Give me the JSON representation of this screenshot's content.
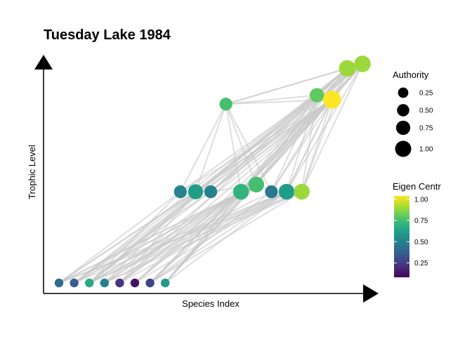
{
  "chart_data": {
    "type": "network",
    "title": "Tuesday Lake 1984",
    "xlabel": "Species Index",
    "ylabel": "Trophic Level",
    "nodes": [
      {
        "id": 0,
        "x": 1,
        "level": 1,
        "eigen": 0.35,
        "authority": 0.02
      },
      {
        "id": 1,
        "x": 2,
        "level": 1,
        "eigen": 0.3,
        "authority": 0.02
      },
      {
        "id": 2,
        "x": 3,
        "level": 1,
        "eigen": 0.6,
        "authority": 0.02
      },
      {
        "id": 3,
        "x": 4,
        "level": 1,
        "eigen": 0.45,
        "authority": 0.02
      },
      {
        "id": 4,
        "x": 5,
        "level": 1,
        "eigen": 0.15,
        "authority": 0.02
      },
      {
        "id": 5,
        "x": 6,
        "level": 1,
        "eigen": 0.05,
        "authority": 0.02
      },
      {
        "id": 6,
        "x": 7,
        "level": 1,
        "eigen": 0.2,
        "authority": 0.02
      },
      {
        "id": 7,
        "x": 8,
        "level": 1,
        "eigen": 0.55,
        "authority": 0.02
      },
      {
        "id": 8,
        "x": 9,
        "level": 2.02,
        "eigen": 0.45,
        "authority": 0.3
      },
      {
        "id": 9,
        "x": 10,
        "level": 2.02,
        "eigen": 0.55,
        "authority": 0.45
      },
      {
        "id": 10,
        "x": 11,
        "level": 2.02,
        "eigen": 0.45,
        "authority": 0.3
      },
      {
        "id": 11,
        "x": 13,
        "level": 2.02,
        "eigen": 0.65,
        "authority": 0.5
      },
      {
        "id": 12,
        "x": 14,
        "level": 2.1,
        "eigen": 0.7,
        "authority": 0.5
      },
      {
        "id": 13,
        "x": 15,
        "level": 2.02,
        "eigen": 0.4,
        "authority": 0.3
      },
      {
        "id": 14,
        "x": 16,
        "level": 2.02,
        "eigen": 0.55,
        "authority": 0.5
      },
      {
        "id": 15,
        "x": 17,
        "level": 2.02,
        "eigen": 0.85,
        "authority": 0.5
      },
      {
        "id": 16,
        "x": 12,
        "level": 3.0,
        "eigen": 0.7,
        "authority": 0.3
      },
      {
        "id": 17,
        "x": 18,
        "level": 3.1,
        "eigen": 0.75,
        "authority": 0.4
      },
      {
        "id": 18,
        "x": 19,
        "level": 3.05,
        "eigen": 1.0,
        "authority": 0.65
      },
      {
        "id": 19,
        "x": 20,
        "level": 3.4,
        "eigen": 0.85,
        "authority": 0.55
      },
      {
        "id": 20,
        "x": 21,
        "level": 3.45,
        "eigen": 0.85,
        "authority": 0.55
      }
    ],
    "edges": [
      [
        0,
        8
      ],
      [
        0,
        9
      ],
      [
        0,
        11
      ],
      [
        0,
        12
      ],
      [
        0,
        14
      ],
      [
        0,
        15
      ],
      [
        0,
        18
      ],
      [
        1,
        9
      ],
      [
        1,
        10
      ],
      [
        1,
        11
      ],
      [
        1,
        12
      ],
      [
        1,
        14
      ],
      [
        1,
        18
      ],
      [
        1,
        19
      ],
      [
        2,
        8
      ],
      [
        2,
        9
      ],
      [
        2,
        11
      ],
      [
        2,
        12
      ],
      [
        2,
        13
      ],
      [
        2,
        14
      ],
      [
        2,
        15
      ],
      [
        2,
        17
      ],
      [
        2,
        18
      ],
      [
        2,
        19
      ],
      [
        2,
        20
      ],
      [
        3,
        9
      ],
      [
        3,
        11
      ],
      [
        3,
        12
      ],
      [
        3,
        14
      ],
      [
        3,
        15
      ],
      [
        3,
        18
      ],
      [
        4,
        9
      ],
      [
        4,
        11
      ],
      [
        4,
        12
      ],
      [
        4,
        14
      ],
      [
        4,
        18
      ],
      [
        4,
        19
      ],
      [
        5,
        11
      ],
      [
        5,
        12
      ],
      [
        5,
        14
      ],
      [
        5,
        18
      ],
      [
        6,
        11
      ],
      [
        6,
        12
      ],
      [
        6,
        13
      ],
      [
        6,
        14
      ],
      [
        6,
        15
      ],
      [
        6,
        18
      ],
      [
        6,
        20
      ],
      [
        7,
        11
      ],
      [
        7,
        12
      ],
      [
        7,
        14
      ],
      [
        7,
        18
      ],
      [
        7,
        19
      ],
      [
        7,
        20
      ],
      [
        8,
        16
      ],
      [
        8,
        18
      ],
      [
        8,
        17
      ],
      [
        9,
        16
      ],
      [
        9,
        17
      ],
      [
        9,
        18
      ],
      [
        9,
        19
      ],
      [
        9,
        20
      ],
      [
        10,
        12
      ],
      [
        10,
        17
      ],
      [
        10,
        18
      ],
      [
        10,
        19
      ],
      [
        10,
        20
      ],
      [
        11,
        16
      ],
      [
        11,
        17
      ],
      [
        11,
        18
      ],
      [
        11,
        19
      ],
      [
        11,
        20
      ],
      [
        12,
        16
      ],
      [
        12,
        17
      ],
      [
        12,
        18
      ],
      [
        12,
        19
      ],
      [
        12,
        20
      ],
      [
        13,
        16
      ],
      [
        13,
        17
      ],
      [
        13,
        18
      ],
      [
        13,
        19
      ],
      [
        14,
        17
      ],
      [
        14,
        18
      ],
      [
        14,
        19
      ],
      [
        14,
        20
      ],
      [
        15,
        17
      ],
      [
        15,
        18
      ],
      [
        15,
        19
      ],
      [
        15,
        20
      ],
      [
        16,
        17
      ],
      [
        16,
        18
      ],
      [
        16,
        19
      ],
      [
        16,
        20
      ],
      [
        17,
        19
      ],
      [
        17,
        20
      ],
      [
        18,
        20
      ],
      [
        17,
        18
      ]
    ],
    "legend": {
      "authority": {
        "title": "Authority",
        "labels": [
          "0.25",
          "0.50",
          "0.75",
          "1.00"
        ],
        "values": [
          0.25,
          0.5,
          0.75,
          1.0
        ]
      },
      "eigen": {
        "title": "Eigen Centr",
        "labels": [
          "1.00",
          "0.75",
          "0.50",
          "0.25"
        ],
        "values": [
          1.0,
          0.75,
          0.5,
          0.25
        ]
      }
    },
    "colors": {
      "edge": "#c8c8c8",
      "axis": "#000000",
      "viridis": [
        "#440154",
        "#482878",
        "#3e4a89",
        "#31688e",
        "#26828e",
        "#1f9e89",
        "#35b779",
        "#6ece58",
        "#b5de2b",
        "#fde725"
      ]
    }
  }
}
